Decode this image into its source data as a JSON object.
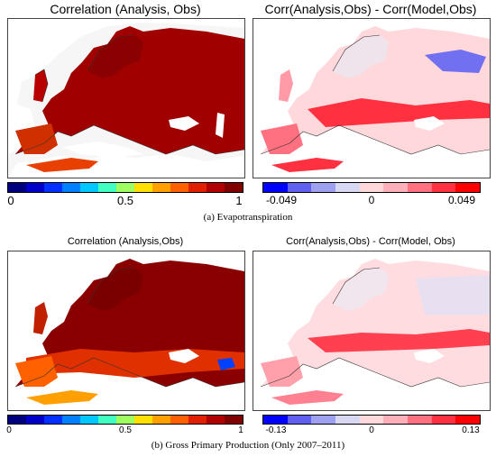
{
  "figure_a": {
    "left_title": "Correlation (Analysis, Obs)",
    "right_title": "Corr(Analysis,Obs) - Corr(Model,Obs)",
    "left_ticks": [
      "0",
      "0.5",
      "1"
    ],
    "right_ticks": [
      "-0.049",
      "0",
      "0.049"
    ],
    "caption": "(a) Evapotranspiration"
  },
  "figure_b": {
    "left_title": "Correlation (Analysis,Obs)",
    "right_title": "Corr(Analysis,Obs) - Corr(Model, Obs)",
    "left_ticks": [
      "0",
      "0.5",
      "1"
    ],
    "right_ticks": [
      "-0.13",
      "0",
      "0.13"
    ],
    "caption": "(b) Gross Primary Production (Only 2007–2011)"
  },
  "colors": {
    "seq": [
      "#00007f",
      "#0000c8",
      "#0030ff",
      "#0080ff",
      "#00c8ff",
      "#40ffc0",
      "#a0ff60",
      "#ffe000",
      "#ffa000",
      "#ff6000",
      "#e02000",
      "#b00000",
      "#800000"
    ],
    "div": [
      "#0000ff",
      "#6060f0",
      "#a0a0f0",
      "#d8d8f4",
      "#ffd8dc",
      "#ffb0b8",
      "#ff7080",
      "#ff3040",
      "#ff0000"
    ]
  }
}
